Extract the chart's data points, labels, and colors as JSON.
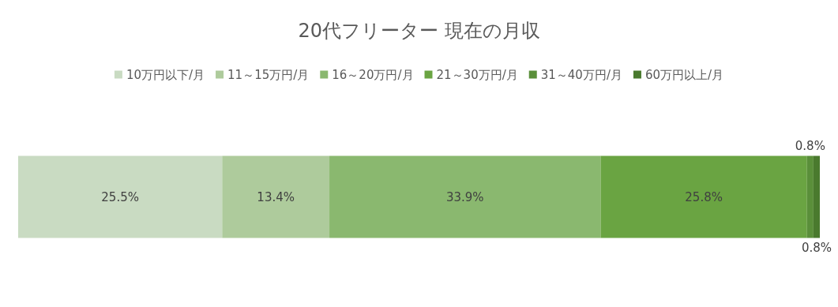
{
  "chart_data": {
    "type": "bar",
    "orientation": "horizontal",
    "stacked": true,
    "title": "20代フリーター 現在の月収",
    "categories": [
      null
    ],
    "legend": "top",
    "series": [
      {
        "name": "10万円以下/月",
        "color": "#c9dbc2",
        "values": [
          25.5
        ],
        "value_labels": [
          "25.5%"
        ]
      },
      {
        "name": "11～15万円/月",
        "color": "#aecb9c",
        "values": [
          13.4
        ],
        "value_labels": [
          "13.4%"
        ]
      },
      {
        "name": "16～20万円/月",
        "color": "#8ab86f",
        "values": [
          33.9
        ],
        "value_labels": [
          "33.9%"
        ]
      },
      {
        "name": "21～30万円/月",
        "color": "#6aa442",
        "values": [
          25.8
        ],
        "value_labels": [
          "25.8%"
        ]
      },
      {
        "name": "31～40万円/月",
        "color": "#5a8f3a",
        "values": [
          0.8
        ],
        "value_labels": [
          "0.8%"
        ]
      },
      {
        "name": "60万円以上/月",
        "color": "#4a7a2e",
        "values": [
          0.8
        ],
        "value_labels": [
          "0.8%"
        ]
      }
    ]
  }
}
